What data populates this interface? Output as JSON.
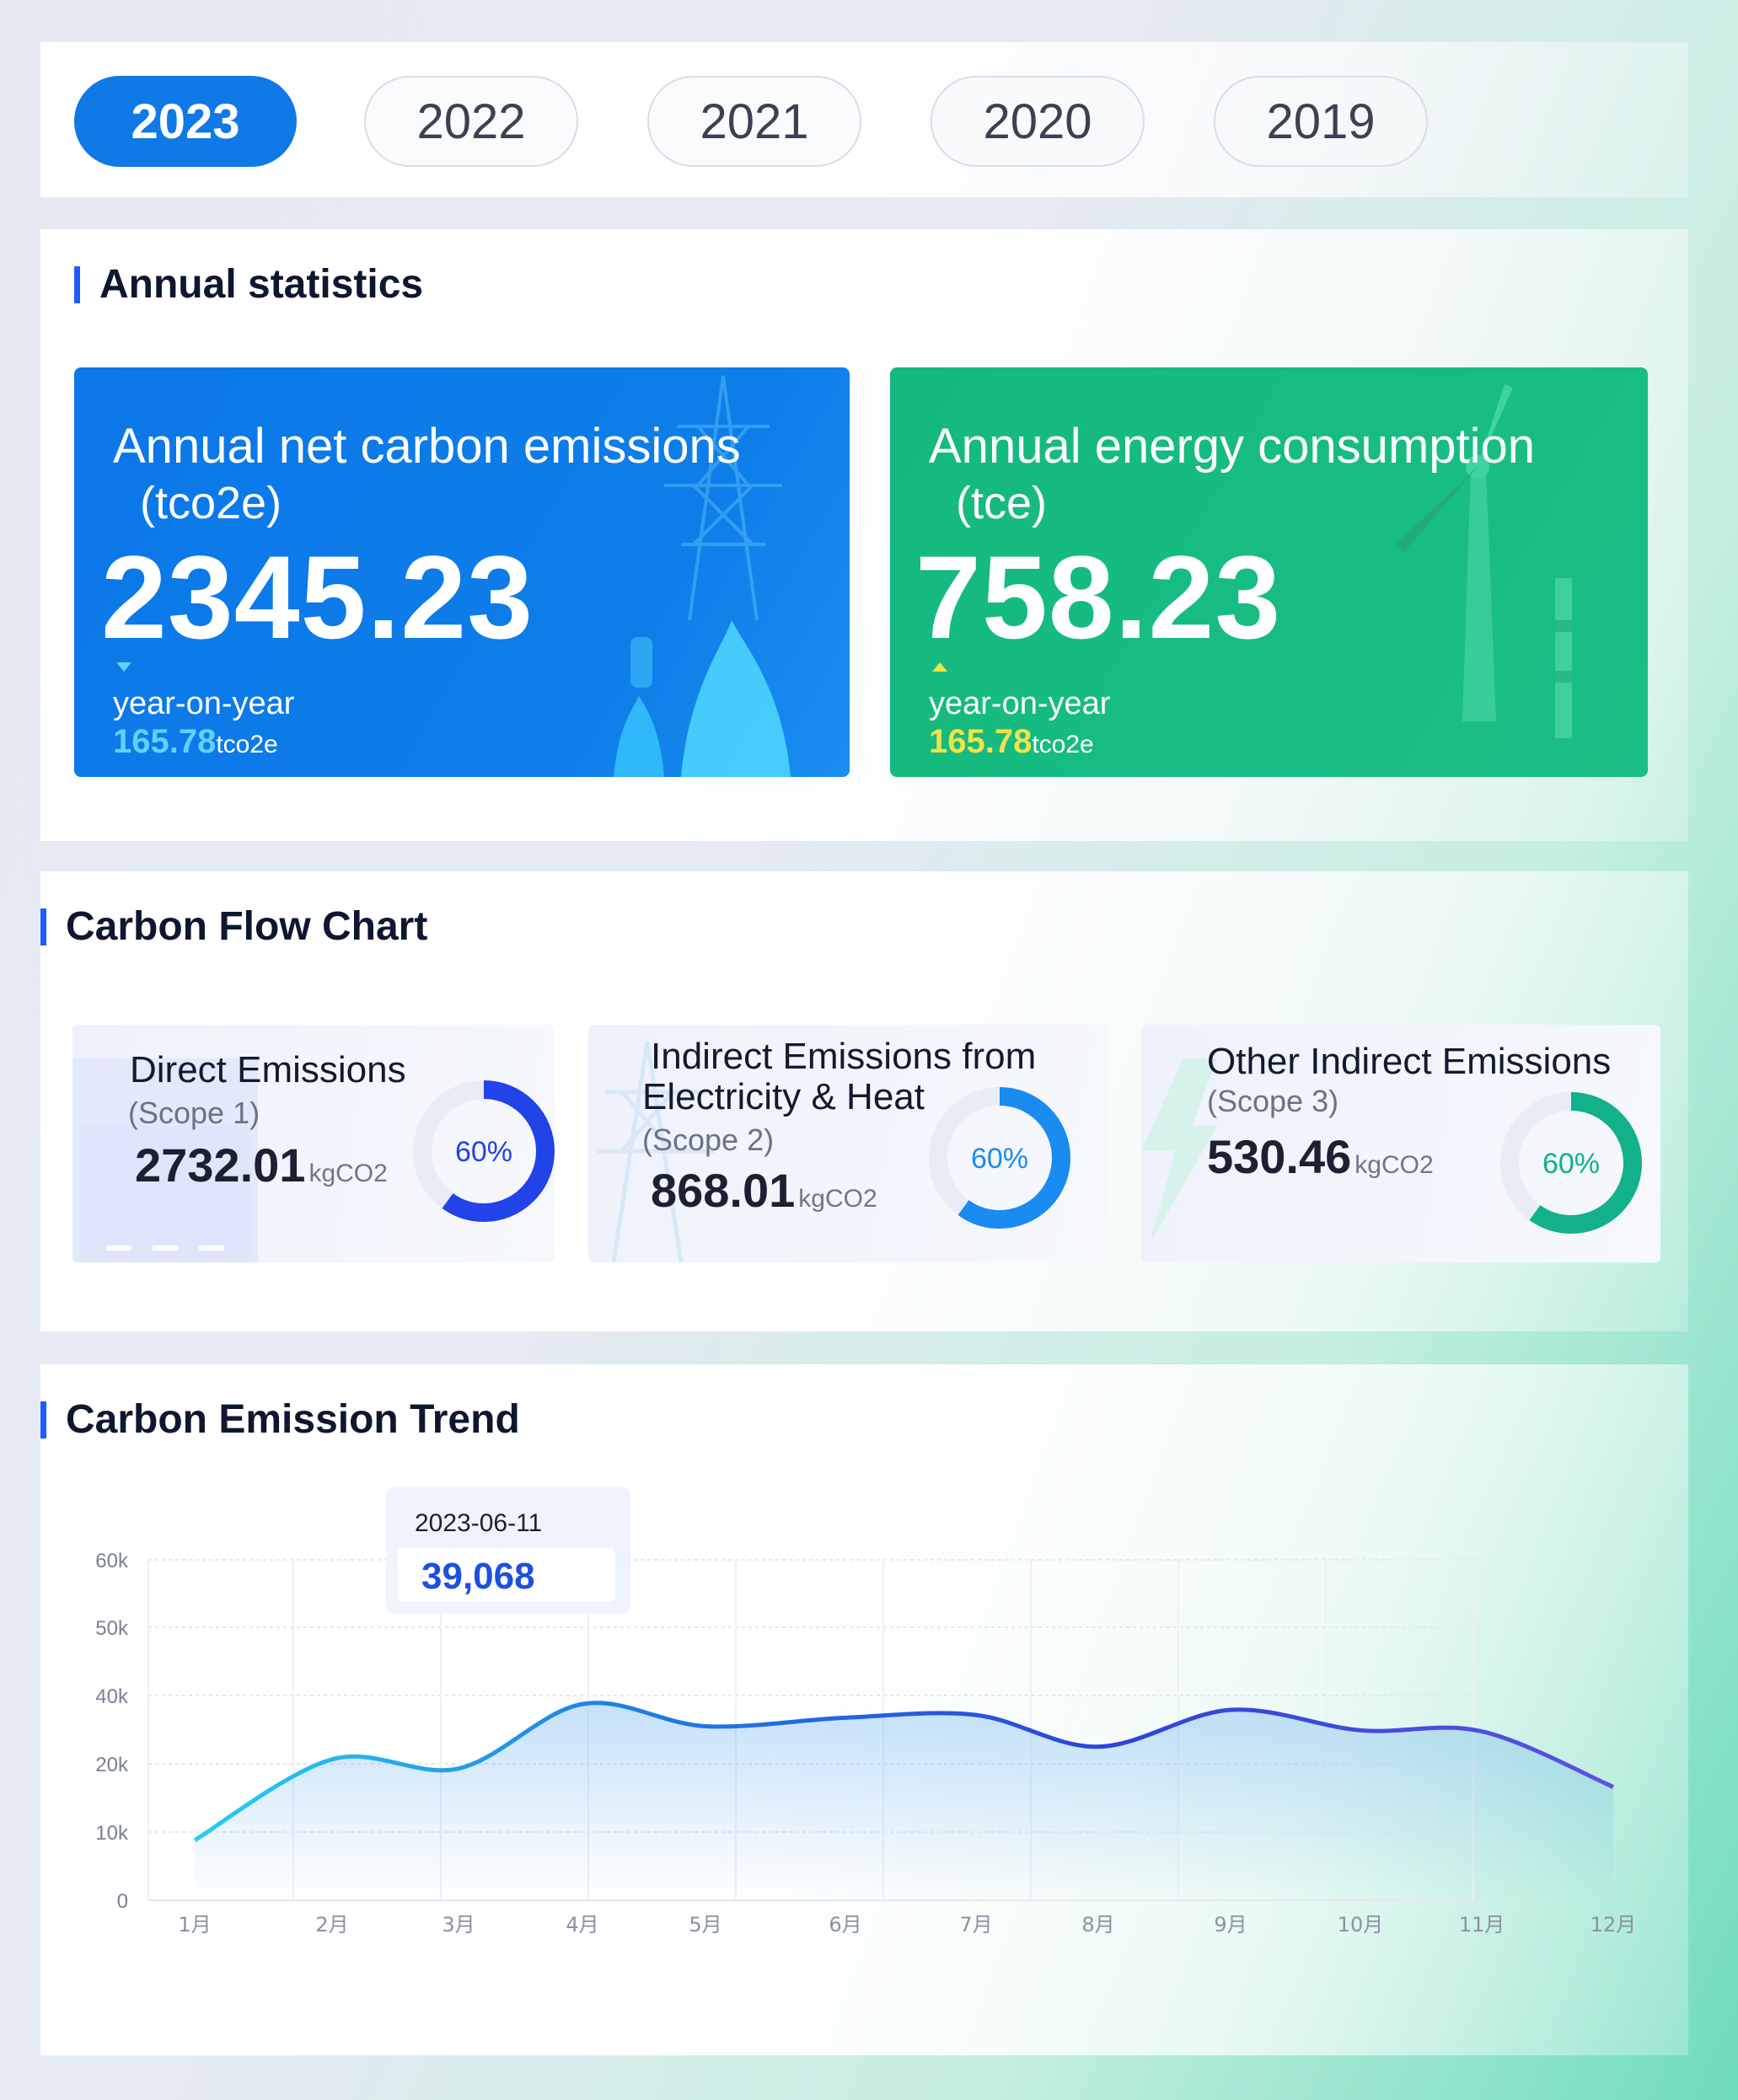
{
  "years": {
    "items": [
      {
        "label": "2023",
        "active": true
      },
      {
        "label": "2022",
        "active": false
      },
      {
        "label": "2021",
        "active": false
      },
      {
        "label": "2020",
        "active": false
      },
      {
        "label": "2019",
        "active": false
      }
    ]
  },
  "annual": {
    "title": "Annual statistics",
    "co2": {
      "title": "Annual net carbon emissions",
      "unit": "(tco2e)",
      "value": "2345.23",
      "yoy_label": "year-on-year",
      "yoy_value": "165.78",
      "yoy_unit": "tco2e",
      "trend": "down"
    },
    "energy": {
      "title": "Annual energy consumption",
      "unit": "(tce)",
      "value": "758.23",
      "yoy_label": "year-on-year",
      "yoy_value": "165.78",
      "yoy_unit": "tco2e",
      "trend": "up"
    }
  },
  "flow": {
    "title": "Carbon Flow Chart",
    "cards": [
      {
        "title_1": "Direct Emissions",
        "title_2": "",
        "scope": "(Scope 1)",
        "value": "2732.01",
        "unit": "kgCO2",
        "percent_label": "60%",
        "percent": 60,
        "color": "#2243e8"
      },
      {
        "title_1": "Indirect Emissions from",
        "title_2": "Electricity & Heat",
        "scope": "(Scope 2)",
        "value": "868.01",
        "unit": "kgCO2",
        "percent_label": "60%",
        "percent": 60,
        "color": "#1a8bf0"
      },
      {
        "title_1": "Other Indirect Emissions",
        "title_2": "",
        "scope": "(Scope 3)",
        "value": "530.46",
        "unit": "kgCO2",
        "percent_label": "60%",
        "percent": 60,
        "color": "#12b189"
      }
    ]
  },
  "trend": {
    "title": "Carbon Emission Trend",
    "tooltip_date": "2023-06-11",
    "tooltip_value": "39,068"
  },
  "chart_data": {
    "type": "line",
    "title": "Carbon Emission Trend",
    "categories": [
      "1月",
      "2月",
      "3月",
      "4月",
      "5月",
      "6月",
      "7月",
      "8月",
      "9月",
      "10月",
      "11月",
      "12月"
    ],
    "y_ticks": [
      "0",
      "10k",
      "20k",
      "40k",
      "50k",
      "60k"
    ],
    "series": [
      {
        "values": [
          8800,
          21300,
          19300,
          37500,
          31000,
          33500,
          34300,
          25000,
          35800,
          29800,
          29500,
          16600
        ]
      }
    ],
    "grid": true,
    "tooltip": {
      "date": "2023-06-11",
      "value": 39068
    }
  }
}
